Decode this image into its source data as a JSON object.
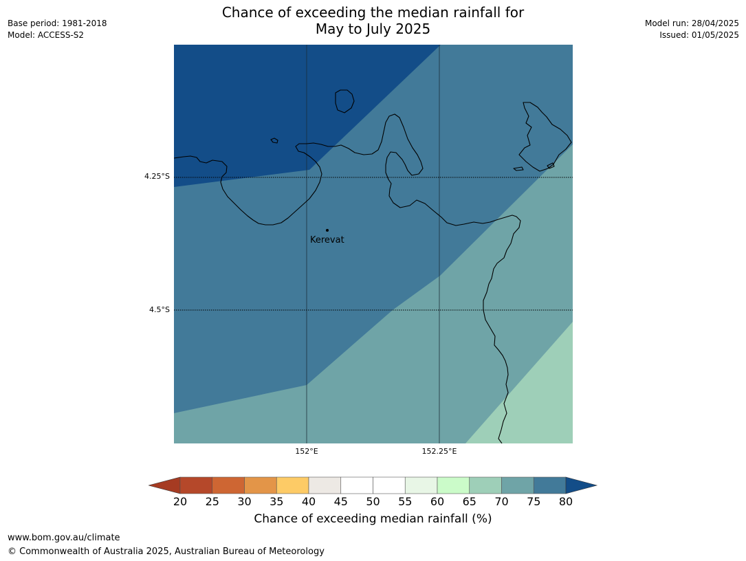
{
  "title_line1": "Chance of exceeding the median rainfall for",
  "title_line2": "May to July 2025",
  "base_period": "Base period: 1981-2018",
  "model": "Model: ACCESS-S2",
  "model_run": "Model run: 28/04/2025",
  "issued": "Issued: 01/05/2025",
  "map": {
    "lat_labels": [
      "4.25°S",
      "4.5°S"
    ],
    "lon_labels": [
      "152°E",
      "152.25°E"
    ],
    "place": "Kerevat",
    "zone_colors": {
      "80_plus": "#134d88",
      "75_80": "#427a99",
      "70_75": "#6fa4a7",
      "65_70": "#9ecfb8"
    }
  },
  "legend": {
    "ticks": [
      "20",
      "25",
      "30",
      "35",
      "40",
      "45",
      "50",
      "55",
      "60",
      "65",
      "70",
      "75",
      "80"
    ],
    "colors": [
      "#a63b22",
      "#b5482a",
      "#ce6633",
      "#e39548",
      "#fdcb66",
      "#ede9e4",
      "#ffffff",
      "#ffffff",
      "#e8f6e6",
      "#cbfbc9",
      "#9ecfb8",
      "#6fa4a7",
      "#427a99",
      "#134d88"
    ],
    "label": "Chance of exceeding median rainfall (%)"
  },
  "footer": {
    "url": "www.bom.gov.au/climate",
    "copyright": "© Commonwealth of Australia 2025, Australian Bureau of Meteorology"
  }
}
